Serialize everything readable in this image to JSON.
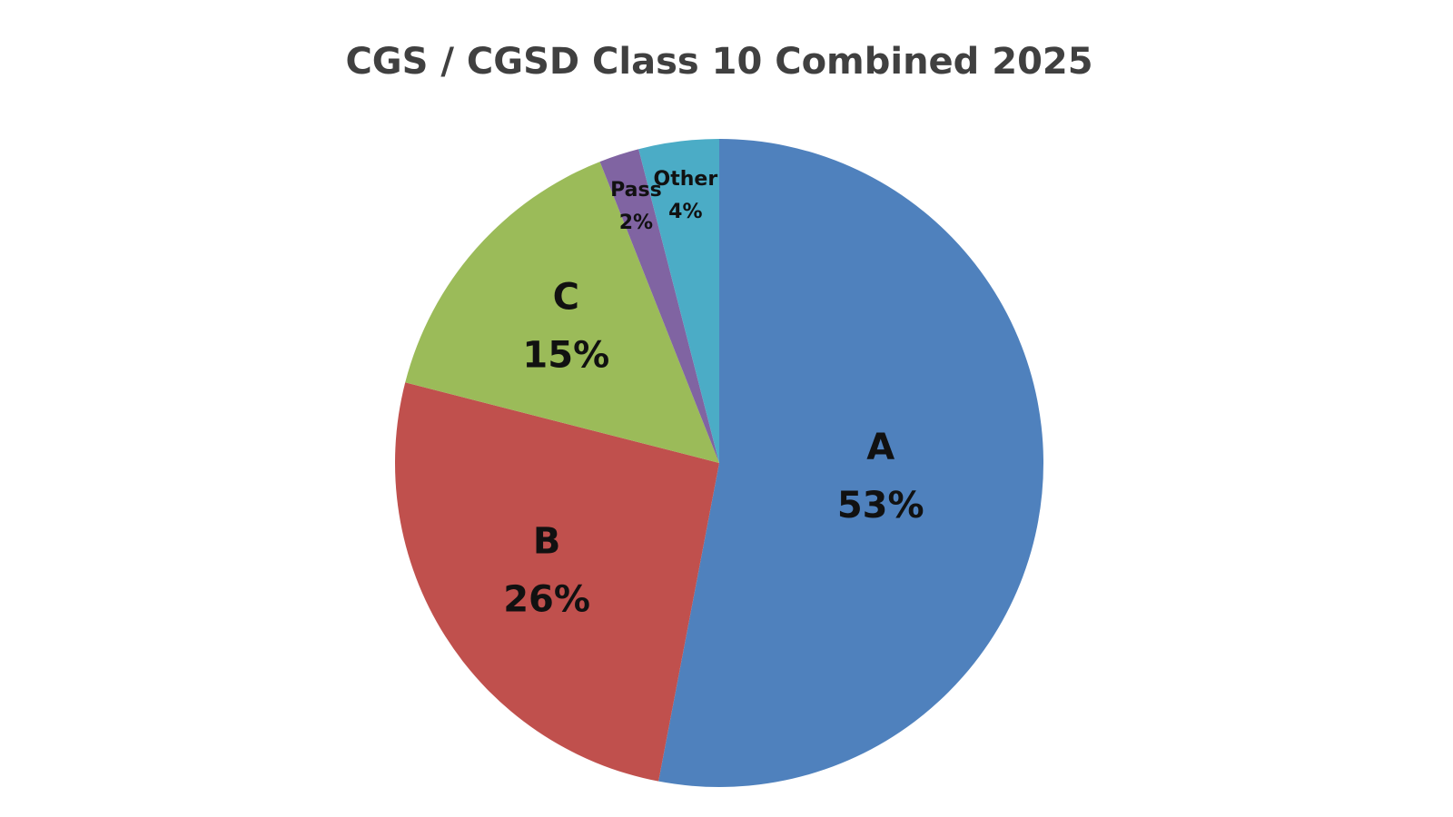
{
  "chart_data": {
    "type": "pie",
    "title": "CGS / CGSD Class 10 Combined 2025",
    "categories": [
      "A",
      "B",
      "C",
      "Pass",
      "Other"
    ],
    "values": [
      53,
      26,
      15,
      2,
      4
    ],
    "value_labels": [
      "53%",
      "26%",
      "15%",
      "2%",
      "4%"
    ],
    "colors": [
      "#4f81bd",
      "#c0504d",
      "#9bbb59",
      "#8064a2",
      "#4bacc6"
    ]
  }
}
